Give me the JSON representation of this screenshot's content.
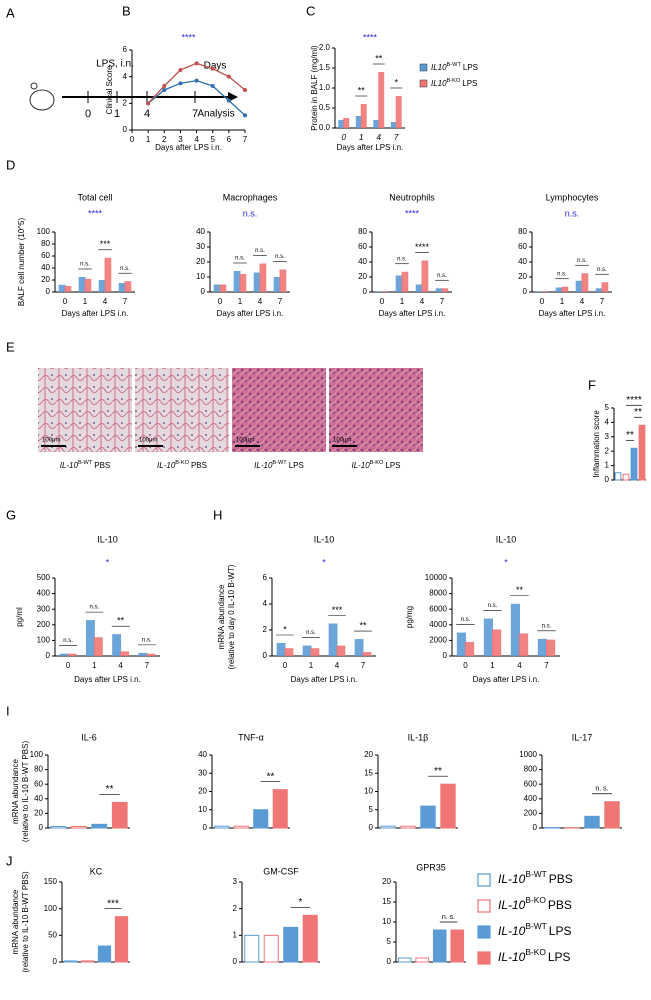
{
  "panel_labels": [
    "A",
    "B",
    "C",
    "D",
    "E",
    "F",
    "G",
    "H",
    "I",
    "J"
  ],
  "timeline": {
    "title": "LPS, i.n.",
    "unit": "Days",
    "days": [
      "0",
      "1",
      "4",
      "7"
    ],
    "end": "Analysis"
  },
  "histology": {
    "scale": "100μm",
    "captions": [
      {
        "gene": "IL-10",
        "sup": "B-WT",
        "cond": "PBS"
      },
      {
        "gene": "IL-10",
        "sup": "B-KO",
        "cond": "PBS"
      },
      {
        "gene": "IL-10",
        "sup": "B-WT",
        "cond": "LPS"
      },
      {
        "gene": "IL-10",
        "sup": "B-KO",
        "cond": "LPS"
      }
    ]
  },
  "legend_c": [
    {
      "gene": "IL10",
      "sup": "B-WT",
      "cond": "LPS",
      "color": "#5b9bd5"
    },
    {
      "gene": "IL10",
      "sup": "B-KO",
      "cond": "LPS",
      "color": "#f07575"
    }
  ],
  "legend_j": [
    {
      "gene": "IL-10",
      "sup": "B-WT",
      "cond": "PBS",
      "color": "#5b9bd5",
      "style": "open"
    },
    {
      "gene": "IL-10",
      "sup": "B-KO",
      "cond": "PBS",
      "color": "#f07575",
      "style": "open"
    },
    {
      "gene": "IL-10",
      "sup": "B-WT",
      "cond": "LPS",
      "color": "#5b9bd5",
      "style": "solid"
    },
    {
      "gene": "IL-10",
      "sup": "B-KO",
      "cond": "LPS",
      "color": "#f07575",
      "style": "solid"
    }
  ],
  "chart_data": [
    {
      "type": "line",
      "sig": "****",
      "ylabel": "Clinical Score",
      "xlabel": "Days after LPS i.n.",
      "x": [
        1,
        2,
        3,
        4,
        5,
        6,
        7
      ],
      "xlim": [
        0,
        7
      ],
      "xticks": [
        0,
        1,
        2,
        3,
        4,
        5,
        6,
        7
      ],
      "ylim": [
        0,
        6
      ],
      "yticks": [
        0,
        2,
        4,
        6
      ],
      "series": [
        {
          "color": "#2f6fb0",
          "values": [
            2,
            3,
            3.5,
            3.7,
            3.3,
            2.2,
            1.1
          ]
        },
        {
          "color": "#c0504d",
          "values": [
            2,
            3.3,
            4.5,
            5.0,
            4.6,
            4.0,
            3.0
          ]
        }
      ]
    },
    {
      "type": "bar",
      "sig": "****",
      "ylabel": "Protein in BALF (mg/ml)",
      "xlabel": "Days after LPS i.n.",
      "categories": [
        "0",
        "1",
        "4",
        "7"
      ],
      "ylim": [
        0,
        2
      ],
      "yticks": [
        {
          "value": 0,
          "label": "0.0"
        },
        {
          "value": 0.5,
          "label": "0.5"
        },
        {
          "value": 1,
          "label": "1.0"
        },
        {
          "value": 1.5,
          "label": "1.5"
        },
        {
          "value": 2,
          "label": "2.0"
        }
      ],
      "series": [
        {
          "color": "#5b9bd5",
          "values": [
            0.2,
            0.3,
            0.2,
            0.15
          ]
        },
        {
          "color": "#f07575",
          "values": [
            0.25,
            0.6,
            1.4,
            0.8
          ]
        }
      ],
      "pair_labels": [
        null,
        "**",
        "**",
        "*"
      ]
    },
    {
      "type": "bar",
      "title": "Total cell",
      "sig": "****",
      "ylabel": "BALF cell number (10^5)",
      "xlabel": "Days after LPS i.n.",
      "categories": [
        "0",
        "1",
        "4",
        "7"
      ],
      "ylim": [
        0,
        100
      ],
      "yticks": [
        0,
        20,
        40,
        60,
        80,
        100
      ],
      "series": [
        {
          "color": "#5b9bd5",
          "values": [
            12,
            25,
            20,
            15
          ]
        },
        {
          "color": "#f07575",
          "values": [
            10,
            22,
            57,
            18
          ]
        }
      ],
      "pair_labels": [
        null,
        "n.s.",
        "***",
        "n.s."
      ]
    },
    {
      "type": "bar",
      "title": "Macrophages",
      "sig": "n.s.",
      "xlabel": "Days after LPS i.n.",
      "categories": [
        "0",
        "1",
        "4",
        "7"
      ],
      "ylim": [
        0,
        40
      ],
      "yticks": [
        0,
        10,
        20,
        30,
        40
      ],
      "series": [
        {
          "color": "#5b9bd5",
          "values": [
            5,
            14,
            13,
            10
          ]
        },
        {
          "color": "#f07575",
          "values": [
            5,
            12,
            19,
            15
          ]
        }
      ],
      "pair_labels": [
        null,
        "n.s.",
        "n.s.",
        "n.s."
      ]
    },
    {
      "type": "bar",
      "title": "Neutrophils",
      "sig": "****",
      "xlabel": "Days after LPS i.n.",
      "categories": [
        "0",
        "1",
        "4",
        "7"
      ],
      "ylim": [
        0,
        80
      ],
      "yticks": [
        0,
        20,
        40,
        60,
        80
      ],
      "series": [
        {
          "color": "#5b9bd5",
          "values": [
            1,
            22,
            10,
            5
          ]
        },
        {
          "color": "#f07575",
          "values": [
            1,
            27,
            42,
            5
          ]
        }
      ],
      "pair_labels": [
        null,
        "n.s.",
        "****",
        "n.s."
      ]
    },
    {
      "type": "bar",
      "title": "Lymphocytes",
      "sig": "n.s.",
      "xlabel": "Days after LPS i.n.",
      "categories": [
        "0",
        "1",
        "4",
        "7"
      ],
      "ylim": [
        0,
        80
      ],
      "yticks": [
        0,
        20,
        40,
        60,
        80
      ],
      "series": [
        {
          "color": "#5b9bd5",
          "values": [
            1,
            6,
            15,
            5
          ]
        },
        {
          "color": "#f07575",
          "values": [
            1,
            7,
            25,
            13
          ]
        }
      ],
      "pair_labels": [
        null,
        "n.s.",
        "n.s.",
        "n.s."
      ]
    },
    {
      "type": "bar",
      "ylabel": "Inflammation score",
      "ylim": [
        0,
        5
      ],
      "yticks": [
        0,
        1,
        2,
        3,
        4,
        5
      ],
      "values": [
        0.5,
        0.4,
        2.2,
        3.8
      ],
      "colors": [
        "#5b9bd5",
        "#f07575",
        "#5b9bd5",
        "#f07575"
      ],
      "styles": [
        "open",
        "open",
        "solid",
        "solid"
      ],
      "comparisons": [
        {
          "from": 1,
          "to": 2,
          "label": "**"
        },
        {
          "from": 1,
          "to": 3,
          "label": "****"
        },
        {
          "from": 2,
          "to": 3,
          "label": "**"
        }
      ]
    },
    {
      "type": "bar",
      "title": "IL-10",
      "sig": "*",
      "ylabel": "pg/ml",
      "xlabel": "Days after LPS i.n.",
      "categories": [
        "0",
        "1",
        "4",
        "7"
      ],
      "ylim": [
        0,
        500
      ],
      "yticks": [
        0,
        100,
        200,
        300,
        400,
        500
      ],
      "series": [
        {
          "color": "#5b9bd5",
          "values": [
            15,
            230,
            140,
            20
          ]
        },
        {
          "color": "#f07575",
          "values": [
            15,
            120,
            30,
            15
          ]
        }
      ],
      "pair_labels": [
        "n.s.",
        "n.s.",
        "**",
        "n.s."
      ]
    },
    {
      "type": "bar",
      "title": "IL-10",
      "sig": "*",
      "ylabel": "mRNA abundance",
      "ylabel2": "(relative to day 0 IL-10 B-WT)",
      "xlabel": "Days after LPS i.n.",
      "categories": [
        "0",
        "1",
        "4",
        "7"
      ],
      "ylim": [
        0,
        6
      ],
      "yticks": [
        0,
        2,
        4,
        6
      ],
      "series": [
        {
          "color": "#5b9bd5",
          "values": [
            1,
            0.8,
            2.5,
            1.3
          ]
        },
        {
          "color": "#f07575",
          "values": [
            0.6,
            0.6,
            0.8,
            0.3
          ]
        }
      ],
      "pair_labels": [
        "*",
        "n.s.",
        "***",
        "**"
      ]
    },
    {
      "type": "bar",
      "title": "IL-10",
      "sig": "*",
      "ylabel": "pg/mg",
      "xlabel": "Days after LPS i.n.",
      "categories": [
        "0",
        "1",
        "4",
        "7"
      ],
      "ylim": [
        0,
        10000
      ],
      "yticks": [
        0,
        2000,
        4000,
        6000,
        8000,
        10000
      ],
      "series": [
        {
          "color": "#5b9bd5",
          "values": [
            3000,
            4800,
            6700,
            2200
          ]
        },
        {
          "color": "#f07575",
          "values": [
            1800,
            3400,
            2900,
            2100
          ]
        }
      ],
      "pair_labels": [
        "n.s.",
        "n.s.",
        "**",
        "n.s."
      ]
    },
    {
      "type": "bar",
      "title": "IL-6",
      "ylabel": "mRNA abundance",
      "ylabel2": "(relative to IL-10 B-WT PBS)",
      "ylim": [
        0,
        100
      ],
      "yticks": [
        0,
        20,
        40,
        60,
        80,
        100
      ],
      "values": [
        2,
        2,
        5,
        35
      ],
      "colors": [
        "#5b9bd5",
        "#f07575",
        "#5b9bd5",
        "#f07575"
      ],
      "styles": [
        "open",
        "open",
        "solid",
        "solid"
      ],
      "comparisons": [
        {
          "from": 2,
          "to": 3,
          "label": "**"
        }
      ]
    },
    {
      "type": "bar",
      "title": "TNF-α",
      "ylim": [
        0,
        40
      ],
      "yticks": [
        0,
        10,
        20,
        30,
        40
      ],
      "values": [
        1,
        1,
        10,
        21
      ],
      "colors": [
        "#5b9bd5",
        "#f07575",
        "#5b9bd5",
        "#f07575"
      ],
      "styles": [
        "open",
        "open",
        "solid",
        "solid"
      ],
      "comparisons": [
        {
          "from": 2,
          "to": 3,
          "label": "**"
        }
      ]
    },
    {
      "type": "bar",
      "title": "IL-1β",
      "ylim": [
        0,
        20
      ],
      "yticks": [
        0,
        5,
        10,
        15,
        20
      ],
      "values": [
        0.5,
        0.5,
        6,
        12
      ],
      "colors": [
        "#5b9bd5",
        "#f07575",
        "#5b9bd5",
        "#f07575"
      ],
      "styles": [
        "open",
        "open",
        "solid",
        "solid"
      ],
      "comparisons": [
        {
          "from": 2,
          "to": 3,
          "label": "**"
        }
      ]
    },
    {
      "type": "bar",
      "title": "IL-17",
      "ylim": [
        0,
        1000
      ],
      "yticks": [
        0,
        200,
        400,
        600,
        800,
        1000
      ],
      "values": [
        5,
        5,
        160,
        360
      ],
      "colors": [
        "#5b9bd5",
        "#f07575",
        "#5b9bd5",
        "#f07575"
      ],
      "styles": [
        "open",
        "open",
        "solid",
        "solid"
      ],
      "comparisons": [
        {
          "from": 2,
          "to": 3,
          "label": "n. s."
        }
      ]
    },
    {
      "type": "bar",
      "title": "KC",
      "ylabel": "mRNA abundance",
      "ylabel2": "(relative to IL-10 B-WT PBS)",
      "ylim": [
        0,
        150
      ],
      "yticks": [
        0,
        50,
        100,
        150
      ],
      "values": [
        2,
        2,
        30,
        85
      ],
      "colors": [
        "#5b9bd5",
        "#f07575",
        "#5b9bd5",
        "#f07575"
      ],
      "styles": [
        "open",
        "open",
        "solid",
        "solid"
      ],
      "comparisons": [
        {
          "from": 2,
          "to": 3,
          "label": "***"
        }
      ]
    },
    {
      "type": "bar",
      "title": "GM-CSF",
      "ylim": [
        0,
        3
      ],
      "yticks": [
        0,
        1,
        2,
        3
      ],
      "values": [
        1,
        1,
        1.3,
        1.75
      ],
      "colors": [
        "#5b9bd5",
        "#f07575",
        "#5b9bd5",
        "#f07575"
      ],
      "styles": [
        "open",
        "open",
        "solid",
        "solid"
      ],
      "comparisons": [
        {
          "from": 2,
          "to": 3,
          "label": "*"
        }
      ]
    },
    {
      "type": "bar",
      "title": "GPR35",
      "ylim": [
        0,
        20
      ],
      "yticks": [
        0,
        5,
        10,
        15,
        20
      ],
      "values": [
        1,
        1,
        8,
        8
      ],
      "colors": [
        "#5b9bd5",
        "#f07575",
        "#5b9bd5",
        "#f07575"
      ],
      "styles": [
        "open",
        "open",
        "solid",
        "solid"
      ],
      "comparisons": [
        {
          "from": 2,
          "to": 3,
          "label": "n. s."
        }
      ]
    }
  ]
}
